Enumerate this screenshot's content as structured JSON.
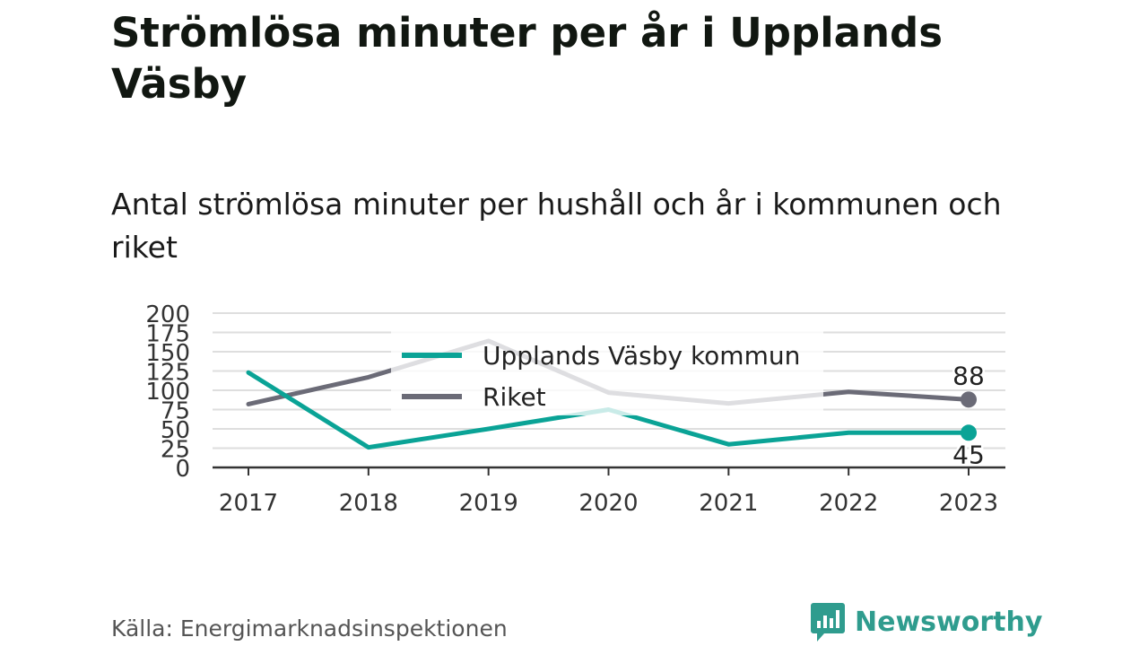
{
  "title": "Strömlösa minuter per år i Upplands Väsby",
  "subtitle": "Antal strömlösa minuter per hushåll och år i kommunen och riket",
  "source": "Källa: Energimarknadsinspektionen",
  "brand": {
    "name": "Newsworthy",
    "icon": "newsworthy-logo-icon",
    "color": "#2f9c8e"
  },
  "chart_data": {
    "type": "line",
    "x": [
      "2017",
      "2018",
      "2019",
      "2020",
      "2021",
      "2022",
      "2023"
    ],
    "yticks": [
      "0",
      "25",
      "50",
      "75",
      "100",
      "125",
      "150",
      "175",
      "200"
    ],
    "ylim": [
      0,
      200
    ],
    "grid": true,
    "legend_position": "top-center",
    "series": [
      {
        "name": "Upplands Väsby kommun",
        "color": "#0aa396",
        "values": [
          123,
          26,
          50,
          75,
          30,
          45,
          45
        ],
        "end_label": "45"
      },
      {
        "name": "Riket",
        "color": "#6b6b77",
        "values": [
          82,
          117,
          164,
          97,
          83,
          98,
          88
        ],
        "end_label": "88"
      }
    ]
  }
}
